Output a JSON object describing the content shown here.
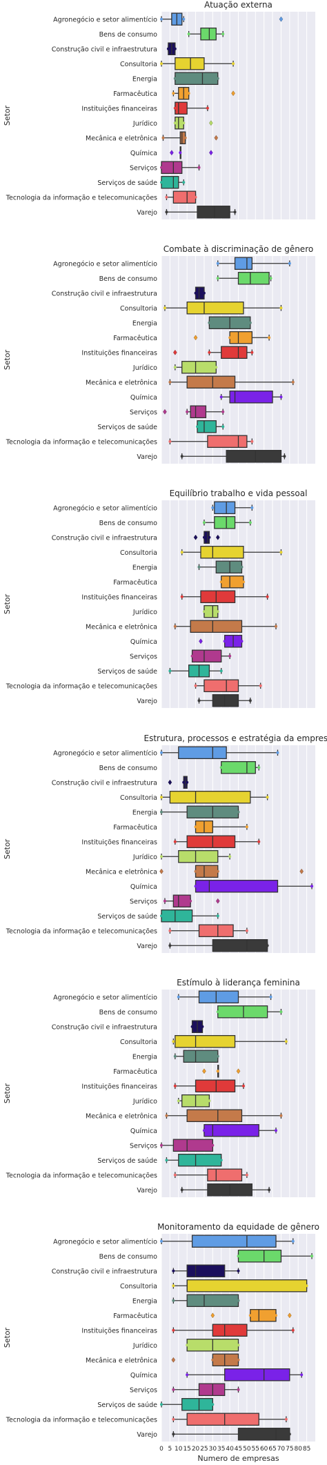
{
  "figure": {
    "ylabel": "Setor",
    "xlabel": "Numero de empresas",
    "xticks": [
      0,
      5,
      10,
      15,
      20,
      25,
      30,
      35,
      40,
      45,
      50,
      55,
      60,
      65,
      70,
      75,
      80,
      85
    ],
    "xlim": [
      0,
      90
    ]
  },
  "categories": [
    "Agronegócio e setor alimentício",
    "Bens de consumo",
    "Construção civil e infraestrutura",
    "Consultoria",
    "Energia",
    "Farmacêutica",
    "Instituições financeiras",
    "Jurídico",
    "Mecânica e eletrônica",
    "Química",
    "Serviços",
    "Serviços de saúde",
    "Tecnologia da informação e telecomunicações",
    "Varejo"
  ],
  "colors": [
    "#5f9ce4",
    "#6bd96b",
    "#1b0f5c",
    "#e6d330",
    "#5f8c7f",
    "#f0a030",
    "#e03a3a",
    "#b8dd6a",
    "#c47a4a",
    "#7a22e8",
    "#b03a8e",
    "#2fb59a",
    "#ef6e6e",
    "#3a3a3a"
  ],
  "chart_data": [
    {
      "type": "box",
      "title": "Atuação externa",
      "boxes": [
        {
          "q1": 6,
          "median": 9,
          "q3": 12,
          "lo": 0,
          "hi": 13,
          "outliers": [
            70
          ]
        },
        {
          "q1": 23,
          "median": 28,
          "q3": 32,
          "lo": 16,
          "hi": 36,
          "outliers": []
        },
        {
          "q1": 4,
          "median": 6,
          "q3": 8,
          "lo": 4,
          "hi": 8,
          "outliers": []
        },
        {
          "q1": 8,
          "median": 17,
          "q3": 25,
          "lo": 0,
          "hi": 42,
          "outliers": []
        },
        {
          "q1": 8,
          "median": 24,
          "q3": 33,
          "lo": 8,
          "hi": 33,
          "outliers": []
        },
        {
          "q1": 10,
          "median": 13,
          "q3": 16,
          "lo": 7,
          "hi": 16,
          "outliers": [
            42
          ]
        },
        {
          "q1": 8,
          "median": 10,
          "q3": 15,
          "lo": 8,
          "hi": 27,
          "outliers": []
        },
        {
          "q1": 8,
          "median": 10,
          "q3": 13,
          "lo": 8,
          "hi": 13,
          "outliers": [
            29
          ]
        },
        {
          "q1": 11,
          "median": 12,
          "q3": 14,
          "lo": 1,
          "hi": 14,
          "outliers": [
            32
          ]
        },
        {
          "q1": 11,
          "median": 11,
          "q3": 11,
          "lo": 11,
          "hi": 11,
          "outliers": [
            6,
            29
          ]
        },
        {
          "q1": 0,
          "median": 7,
          "q3": 12,
          "lo": 0,
          "hi": 22,
          "outliers": []
        },
        {
          "q1": 0,
          "median": 7,
          "q3": 10,
          "lo": 0,
          "hi": 13,
          "outliers": []
        },
        {
          "q1": 7,
          "median": 15,
          "q3": 20,
          "lo": 3,
          "hi": 20,
          "outliers": []
        },
        {
          "q1": 21,
          "median": 31,
          "q3": 40,
          "lo": 3,
          "hi": 43,
          "outliers": []
        }
      ]
    },
    {
      "type": "box",
      "title": "Combate à discriminação de gênero",
      "boxes": [
        {
          "q1": 43,
          "median": 50,
          "q3": 53,
          "lo": 33,
          "hi": 75,
          "outliers": []
        },
        {
          "q1": 45,
          "median": 52,
          "q3": 63,
          "lo": 33,
          "hi": 64,
          "outliers": []
        },
        {
          "q1": 20,
          "median": 22,
          "q3": 25,
          "lo": 20,
          "hi": 25,
          "outliers": []
        },
        {
          "q1": 15,
          "median": 25,
          "q3": 48,
          "lo": 2,
          "hi": 70,
          "outliers": []
        },
        {
          "q1": 28,
          "median": 40,
          "q3": 52,
          "lo": 28,
          "hi": 52,
          "outliers": []
        },
        {
          "q1": 40,
          "median": 45,
          "q3": 53,
          "lo": 40,
          "hi": 63,
          "outliers": [
            20
          ]
        },
        {
          "q1": 35,
          "median": 45,
          "q3": 50,
          "lo": 28,
          "hi": 53,
          "outliers": [
            8
          ]
        },
        {
          "q1": 12,
          "median": 20,
          "q3": 32,
          "lo": 8,
          "hi": 32,
          "outliers": []
        },
        {
          "q1": 15,
          "median": 30,
          "q3": 43,
          "lo": 5,
          "hi": 77,
          "outliers": []
        },
        {
          "q1": 40,
          "median": 43,
          "q3": 65,
          "lo": 35,
          "hi": 70,
          "outliers": []
        },
        {
          "q1": 17,
          "median": 20,
          "q3": 26,
          "lo": 15,
          "hi": 36,
          "outliers": [
            2
          ]
        },
        {
          "q1": 21,
          "median": 25,
          "q3": 32,
          "lo": 21,
          "hi": 36,
          "outliers": []
        },
        {
          "q1": 27,
          "median": 45,
          "q3": 50,
          "lo": 5,
          "hi": 53,
          "outliers": []
        },
        {
          "q1": 38,
          "median": 55,
          "q3": 70,
          "lo": 12,
          "hi": 72,
          "outliers": []
        }
      ]
    },
    {
      "type": "box",
      "title": "Equilíbrio trabalho e vida pessoal",
      "boxes": [
        {
          "q1": 31,
          "median": 38,
          "q3": 43,
          "lo": 30,
          "hi": 53,
          "outliers": []
        },
        {
          "q1": 31,
          "median": 38,
          "q3": 43,
          "lo": 25,
          "hi": 52,
          "outliers": []
        },
        {
          "q1": 25,
          "median": 27,
          "q3": 28,
          "lo": 25,
          "hi": 28,
          "outliers": [
            20,
            33
          ]
        },
        {
          "q1": 23,
          "median": 30,
          "q3": 48,
          "lo": 12,
          "hi": 70,
          "outliers": []
        },
        {
          "q1": 32,
          "median": 40,
          "q3": 47,
          "lo": 22,
          "hi": 47,
          "outliers": []
        },
        {
          "q1": 35,
          "median": 40,
          "q3": 48,
          "lo": 35,
          "hi": 48,
          "outliers": []
        },
        {
          "q1": 23,
          "median": 32,
          "q3": 43,
          "lo": 12,
          "hi": 62,
          "outliers": []
        },
        {
          "q1": 25,
          "median": 30,
          "q3": 33,
          "lo": 25,
          "hi": 33,
          "outliers": []
        },
        {
          "q1": 17,
          "median": 30,
          "q3": 47,
          "lo": 8,
          "hi": 67,
          "outliers": []
        },
        {
          "q1": 37,
          "median": 42,
          "q3": 47,
          "lo": 37,
          "hi": 47,
          "outliers": [
            23
          ]
        },
        {
          "q1": 18,
          "median": 25,
          "q3": 35,
          "lo": 18,
          "hi": 40,
          "outliers": []
        },
        {
          "q1": 16,
          "median": 22,
          "q3": 28,
          "lo": 5,
          "hi": 35,
          "outliers": []
        },
        {
          "q1": 25,
          "median": 38,
          "q3": 45,
          "lo": 20,
          "hi": 58,
          "outliers": []
        },
        {
          "q1": 30,
          "median": 37,
          "q3": 45,
          "lo": 22,
          "hi": 52,
          "outliers": []
        }
      ]
    },
    {
      "type": "box",
      "title": "Estrutura, processos e estratégia da empresa",
      "boxes": [
        {
          "q1": 10,
          "median": 30,
          "q3": 38,
          "lo": 0,
          "hi": 68,
          "outliers": []
        },
        {
          "q1": 35,
          "median": 50,
          "q3": 55,
          "lo": 35,
          "hi": 57,
          "outliers": []
        },
        {
          "q1": 13,
          "median": 14,
          "q3": 15,
          "lo": 13,
          "hi": 15,
          "outliers": [
            5
          ]
        },
        {
          "q1": 5,
          "median": 20,
          "q3": 52,
          "lo": 0,
          "hi": 62,
          "outliers": []
        },
        {
          "q1": 15,
          "median": 30,
          "q3": 45,
          "lo": 0,
          "hi": 45,
          "outliers": []
        },
        {
          "q1": 20,
          "median": 25,
          "q3": 30,
          "lo": 20,
          "hi": 50,
          "outliers": []
        },
        {
          "q1": 15,
          "median": 30,
          "q3": 43,
          "lo": 8,
          "hi": 57,
          "outliers": []
        },
        {
          "q1": 10,
          "median": 20,
          "q3": 33,
          "lo": 0,
          "hi": 40,
          "outliers": []
        },
        {
          "q1": 20,
          "median": 25,
          "q3": 33,
          "lo": 20,
          "hi": 33,
          "outliers": [
            0,
            82
          ]
        },
        {
          "q1": 20,
          "median": 28,
          "q3": 68,
          "lo": 20,
          "hi": 88,
          "outliers": []
        },
        {
          "q1": 7,
          "median": 10,
          "q3": 17,
          "lo": 2,
          "hi": 17,
          "outliers": [
            33
          ]
        },
        {
          "q1": 0,
          "median": 8,
          "q3": 18,
          "lo": 0,
          "hi": 33,
          "outliers": []
        },
        {
          "q1": 22,
          "median": 33,
          "q3": 42,
          "lo": 5,
          "hi": 50,
          "outliers": []
        },
        {
          "q1": 30,
          "median": 50,
          "q3": 62,
          "lo": 5,
          "hi": 62,
          "outliers": []
        }
      ]
    },
    {
      "type": "box",
      "title": "Estímulo à liderança feminina",
      "boxes": [
        {
          "q1": 22,
          "median": 32,
          "q3": 45,
          "lo": 10,
          "hi": 64,
          "outliers": []
        },
        {
          "q1": 33,
          "median": 48,
          "q3": 62,
          "lo": 33,
          "hi": 70,
          "outliers": []
        },
        {
          "q1": 18,
          "median": 21,
          "q3": 24,
          "lo": 18,
          "hi": 24,
          "outliers": []
        },
        {
          "q1": 8,
          "median": 20,
          "q3": 43,
          "lo": 7,
          "hi": 73,
          "outliers": []
        },
        {
          "q1": 13,
          "median": 20,
          "q3": 33,
          "lo": 8,
          "hi": 33,
          "outliers": []
        },
        {
          "q1": 33,
          "median": 33,
          "q3": 33,
          "lo": 33,
          "hi": 33,
          "outliers": [
            25,
            45
          ]
        },
        {
          "q1": 20,
          "median": 32,
          "q3": 43,
          "lo": 8,
          "hi": 48,
          "outliers": []
        },
        {
          "q1": 12,
          "median": 20,
          "q3": 28,
          "lo": 10,
          "hi": 28,
          "outliers": []
        },
        {
          "q1": 15,
          "median": 33,
          "q3": 47,
          "lo": 3,
          "hi": 70,
          "outliers": []
        },
        {
          "q1": 25,
          "median": 30,
          "q3": 57,
          "lo": 25,
          "hi": 67,
          "outliers": []
        },
        {
          "q1": 7,
          "median": 15,
          "q3": 30,
          "lo": 0,
          "hi": 30,
          "outliers": []
        },
        {
          "q1": 10,
          "median": 20,
          "q3": 35,
          "lo": 3,
          "hi": 35,
          "outliers": []
        },
        {
          "q1": 27,
          "median": 32,
          "q3": 47,
          "lo": 8,
          "hi": 50,
          "outliers": []
        },
        {
          "q1": 27,
          "median": 40,
          "q3": 53,
          "lo": 12,
          "hi": 63,
          "outliers": []
        }
      ]
    },
    {
      "type": "box",
      "title": "Monitoramento da equidade de gênero",
      "boxes": [
        {
          "q1": 18,
          "median": 50,
          "q3": 67,
          "lo": 0,
          "hi": 77,
          "outliers": []
        },
        {
          "q1": 45,
          "median": 60,
          "q3": 70,
          "lo": 45,
          "hi": 88,
          "outliers": []
        },
        {
          "q1": 15,
          "median": 20,
          "q3": 37,
          "lo": 7,
          "hi": 45,
          "outliers": []
        },
        {
          "q1": 15,
          "median": 15,
          "q3": 85,
          "lo": 7,
          "hi": 85,
          "outliers": []
        },
        {
          "q1": 15,
          "median": 25,
          "q3": 45,
          "lo": 7,
          "hi": 45,
          "outliers": []
        },
        {
          "q1": 52,
          "median": 57,
          "q3": 67,
          "lo": 52,
          "hi": 67,
          "outliers": [
            30,
            75
          ]
        },
        {
          "q1": 30,
          "median": 37,
          "q3": 50,
          "lo": 7,
          "hi": 77,
          "outliers": []
        },
        {
          "q1": 15,
          "median": 30,
          "q3": 45,
          "lo": 15,
          "hi": 45,
          "outliers": []
        },
        {
          "q1": 30,
          "median": 37,
          "q3": 45,
          "lo": 30,
          "hi": 45,
          "outliers": [
            7
          ]
        },
        {
          "q1": 37,
          "median": 60,
          "q3": 75,
          "lo": 15,
          "hi": 82,
          "outliers": []
        },
        {
          "q1": 22,
          "median": 30,
          "q3": 37,
          "lo": 7,
          "hi": 45,
          "outliers": []
        },
        {
          "q1": 12,
          "median": 22,
          "q3": 30,
          "lo": 0,
          "hi": 30,
          "outliers": []
        },
        {
          "q1": 15,
          "median": 37,
          "q3": 57,
          "lo": 7,
          "hi": 73,
          "outliers": []
        },
        {
          "q1": 45,
          "median": 67,
          "q3": 75,
          "lo": 7,
          "hi": 75,
          "outliers": []
        }
      ]
    }
  ]
}
